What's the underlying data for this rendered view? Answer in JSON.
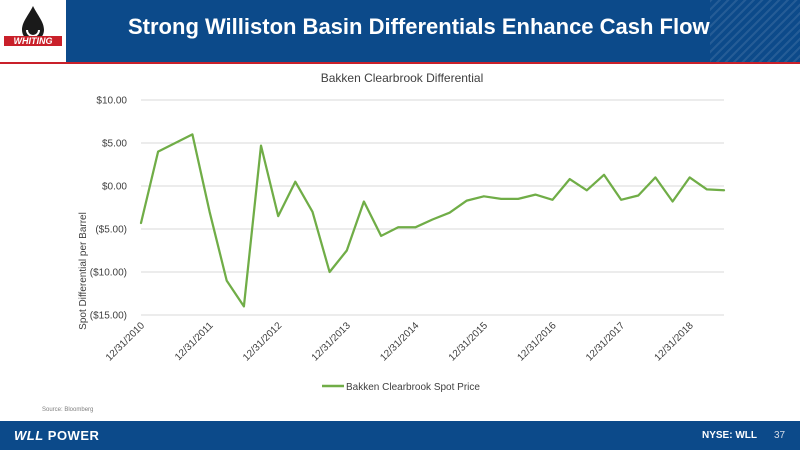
{
  "header": {
    "logo_text": "WHITING",
    "title": "Strong Williston Basin Differentials Enhance Cash Flow",
    "colors": {
      "header_bg": "#0c4a8a",
      "accent": "#c9202a"
    }
  },
  "chart_data": {
    "type": "line",
    "title": "Bakken Clearbrook Differential",
    "ylabel": "Spot Differential per Barrel",
    "xlabel": "",
    "ylim": [
      -15,
      10
    ],
    "yticks": [
      10,
      5,
      0,
      -5,
      -10,
      -15
    ],
    "ytick_labels": [
      "$10.00",
      "$5.00",
      "$0.00",
      "($5.00)",
      "($10.00)",
      "($15.00)"
    ],
    "xlim": [
      0,
      34
    ],
    "xticks": [
      0,
      4,
      8,
      12,
      16,
      20,
      24,
      28,
      32
    ],
    "xtick_labels": [
      "12/31/2010",
      "12/31/2011",
      "12/31/2012",
      "12/31/2013",
      "12/31/2014",
      "12/31/2015",
      "12/31/2016",
      "12/31/2017",
      "12/31/2018"
    ],
    "grid": true,
    "legend_position": "bottom",
    "series": [
      {
        "name": "Bakken Clearbrook Spot Price",
        "color": "#70ad47",
        "x": [
          0,
          1,
          3,
          4,
          5,
          6,
          7,
          8,
          9,
          10,
          11,
          12,
          13,
          14,
          15,
          16,
          17,
          18,
          19,
          20,
          21,
          22,
          23,
          24,
          25,
          26,
          27,
          28,
          29,
          30,
          31,
          32,
          33,
          34
        ],
        "values": [
          -4.3,
          4.0,
          6.0,
          -3.0,
          -11.0,
          -14.0,
          4.7,
          -3.5,
          0.5,
          -3.0,
          -10.0,
          -7.5,
          -1.8,
          -5.8,
          -4.8,
          -4.8,
          -3.9,
          -3.1,
          -1.7,
          -1.2,
          -1.5,
          -1.5,
          -1.0,
          -1.6,
          0.8,
          -0.5,
          1.3,
          -1.6,
          -1.1,
          1.0,
          -1.8,
          1.0,
          -0.4,
          -0.5
        ]
      }
    ]
  },
  "source": "Source: Bloomberg",
  "footer": {
    "brand_prefix": "WLL",
    "brand_suffix": " POWER",
    "ticker": "NYSE: WLL",
    "page_number": "37"
  }
}
